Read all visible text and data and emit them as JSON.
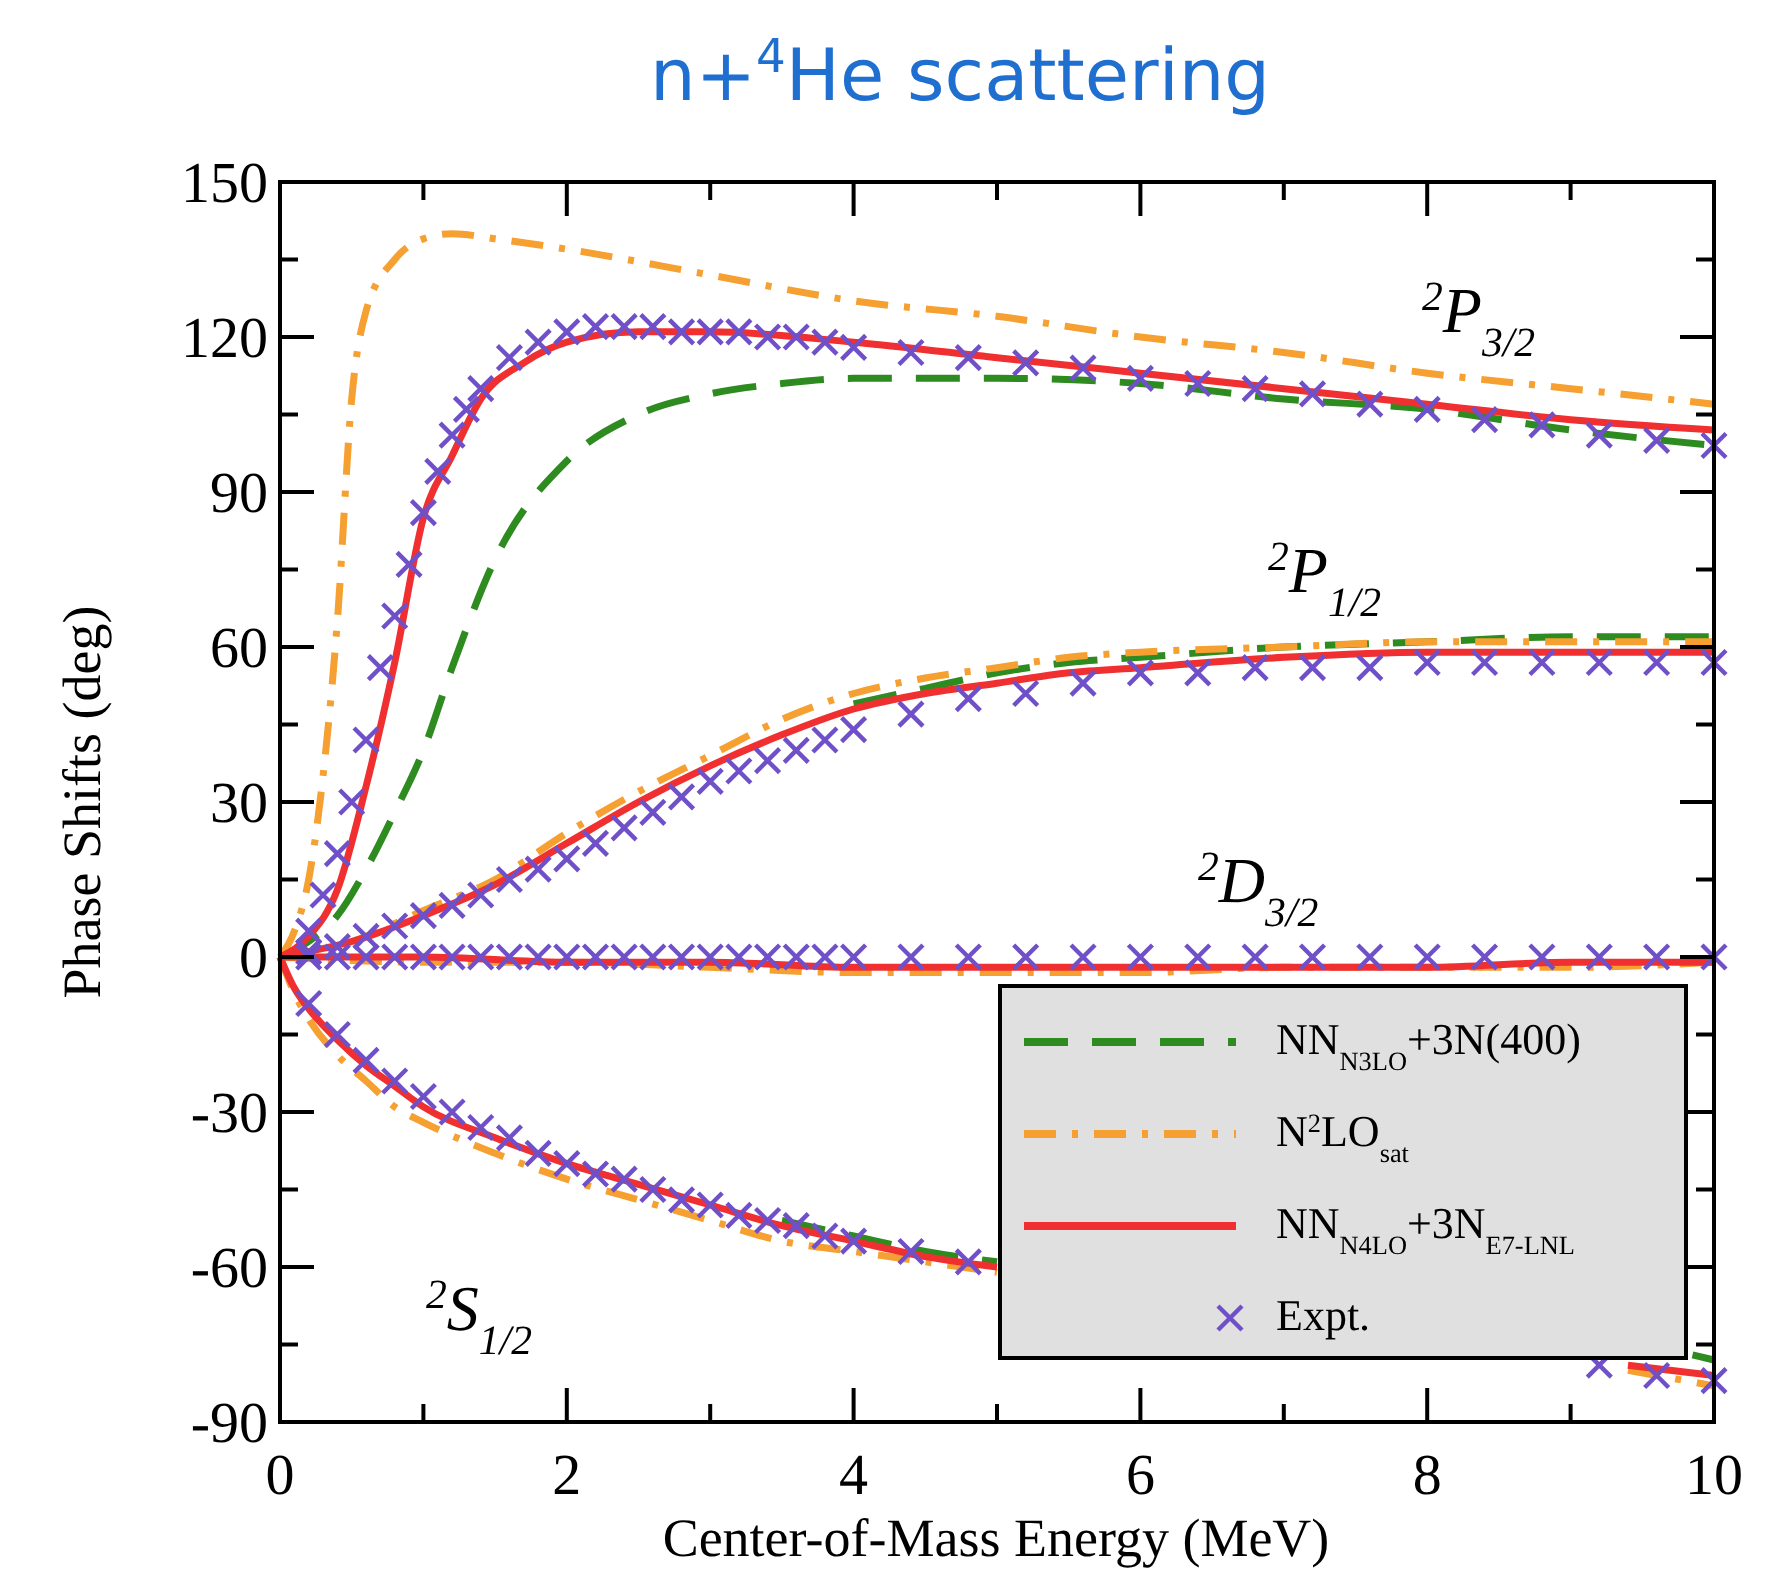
{
  "chart_data": {
    "type": "line",
    "title": "n+$^{4}$He scattering",
    "xlabel": "Center-of-Mass Energy (MeV)",
    "ylabel": "Phase Shifts (deg)",
    "xlim": [
      0,
      10
    ],
    "ylim": [
      -90,
      150
    ],
    "xticks": [
      0,
      {
        "value": 1,
        "label": null
      },
      2,
      {
        "value": 3,
        "label": null
      },
      4,
      {
        "value": 5,
        "label": null
      },
      6,
      {
        "value": 7,
        "label": null
      },
      8,
      {
        "value": 9,
        "label": null
      },
      10
    ],
    "yticks": [
      -90,
      {
        "value": -75,
        "label": null
      },
      -60,
      {
        "value": -45,
        "label": null
      },
      -30,
      {
        "value": -15,
        "label": null
      },
      0,
      {
        "value": 15,
        "label": null
      },
      30,
      {
        "value": 45,
        "label": null
      },
      60,
      {
        "value": 75,
        "label": null
      },
      90,
      {
        "value": 105,
        "label": null
      },
      120,
      {
        "value": 135,
        "label": null
      },
      150
    ],
    "grid": false,
    "legend": "bottom right",
    "annotations": [
      "$^{2}$P$_{3/2}$",
      "$^{2}$P$_{1/2}$",
      "$^{2}$D$_{3/2}$",
      "$^{2}$S$_{1/2}$"
    ],
    "series": [
      {
        "name": "NN$_{N3LO}$+3N(400)",
        "color": "#2e8b20",
        "line_style": "dashed",
        "x": [
          0,
          0.2,
          0.4,
          0.6,
          0.8,
          1.0,
          1.2,
          1.5,
          2,
          2.5,
          3,
          3.5,
          4,
          5,
          6,
          7,
          8,
          9,
          10
        ],
        "values": [
          0,
          3,
          8,
          17,
          28,
          40,
          56,
          77,
          96,
          105,
          109,
          111,
          112,
          112,
          111,
          108,
          106,
          102,
          99
        ]
      },
      {
        "color": "#2e8b20",
        "line_style": "dashed",
        "x": [
          4,
          4.5,
          5,
          5.5,
          6,
          7,
          8,
          9,
          10
        ],
        "values": [
          49,
          52,
          55,
          57,
          58,
          60,
          61,
          62,
          62
        ]
      },
      {
        "color": "#2e8b20",
        "line_style": "dashed",
        "x": [
          3.5,
          4,
          4.5,
          5,
          6,
          7,
          8,
          9.85,
          10
        ],
        "values": [
          -51,
          -54,
          -57,
          -59,
          null,
          null,
          null,
          -77,
          -78
        ]
      },
      {
        "name": "N$^{2}$LO$_{sat}$",
        "color": "#f5a030",
        "line_style": "dotted",
        "x": [
          0,
          0.1,
          0.2,
          0.3,
          0.4,
          0.5,
          0.6,
          0.8,
          1.0,
          1.2,
          1.5,
          2,
          3,
          4,
          5,
          6,
          7,
          8,
          9,
          10
        ],
        "values": [
          0,
          5,
          15,
          35,
          65,
          108,
          125,
          135,
          139,
          140,
          139,
          137,
          132,
          127,
          124,
          120,
          117,
          113,
          110,
          107
        ]
      },
      {
        "color": "#f5a030",
        "line_style": "dotted",
        "x": [
          0,
          0.5,
          1,
          1.5,
          2,
          2.5,
          3,
          3.5,
          4,
          4.5,
          5,
          5.5,
          6,
          7,
          8,
          9,
          10
        ],
        "values": [
          0,
          3,
          9,
          15,
          24,
          32,
          39,
          46,
          51,
          54,
          56,
          58,
          59,
          60,
          61,
          61,
          61
        ]
      },
      {
        "color": "#f5a030",
        "line_style": "dotted",
        "x": [
          0,
          1,
          2,
          3,
          4,
          5,
          6,
          7,
          8,
          9,
          10
        ],
        "values": [
          0,
          -1,
          -1,
          -2,
          -3,
          -3,
          -3,
          -2,
          -2,
          -2,
          -1
        ]
      },
      {
        "color": "#f5a030",
        "line_style": "dotted",
        "x": [
          0,
          0.1,
          0.2,
          0.4,
          0.6,
          0.8,
          1,
          1.5,
          2,
          2.5,
          3,
          3.5,
          4,
          4.5,
          5,
          6,
          7,
          8,
          9.4,
          10
        ],
        "values": [
          0,
          -7,
          -12,
          -19,
          -24,
          -29,
          -32,
          -38,
          -43,
          -47,
          -51,
          -55,
          -57,
          -59,
          -61,
          null,
          null,
          null,
          -80,
          -83
        ]
      },
      {
        "name": "NN$_{N4LO}$+3N$_{E7-LNL}$",
        "color": "#f03030",
        "line_style": "solid",
        "x": [
          0,
          0.2,
          0.4,
          0.6,
          0.8,
          1.0,
          1.2,
          1.4,
          1.7,
          2,
          2.5,
          3,
          4,
          5,
          6,
          7,
          8,
          9,
          10
        ],
        "values": [
          0,
          4,
          13,
          33,
          57,
          85,
          97,
          108,
          115,
          119,
          121,
          121,
          119,
          116,
          113,
          110,
          107,
          104,
          102
        ]
      },
      {
        "color": "#f03030",
        "line_style": "solid",
        "x": [
          0,
          0.5,
          1,
          1.5,
          2,
          2.5,
          3,
          3.5,
          4,
          4.5,
          5,
          5.5,
          6,
          7,
          8,
          9,
          10
        ],
        "values": [
          0,
          3,
          8,
          14,
          22,
          30,
          37,
          43,
          48,
          51,
          53,
          55,
          56,
          58,
          59,
          59,
          59
        ]
      },
      {
        "color": "#f03030",
        "line_style": "solid",
        "x": [
          0,
          1,
          2,
          3,
          4,
          5,
          6,
          7,
          8,
          9,
          10
        ],
        "values": [
          0,
          0,
          -1,
          -1,
          -2,
          -2,
          -2,
          -2,
          -2,
          -1,
          -1
        ]
      },
      {
        "color": "#f03030",
        "line_style": "solid",
        "x": [
          0,
          0.1,
          0.2,
          0.4,
          0.6,
          0.8,
          1,
          1.5,
          2,
          2.5,
          3,
          3.5,
          4,
          4.5,
          5,
          6,
          7,
          8,
          9.4,
          10
        ],
        "values": [
          0,
          -6,
          -10,
          -16,
          -21,
          -25,
          -29,
          -35,
          -40,
          -44,
          -48,
          -52,
          -55,
          -58,
          -60,
          null,
          null,
          null,
          -79,
          -81
        ]
      },
      {
        "name": "Expt.",
        "type": "scatter",
        "color": "#7050c8",
        "marker": "cross",
        "x": [
          0.2,
          0.3,
          0.4,
          0.5,
          0.6,
          0.7,
          0.8,
          0.9,
          1.0,
          1.1,
          1.2,
          1.3,
          1.4,
          1.6,
          1.8,
          2.0,
          2.2,
          2.4,
          2.6,
          2.8,
          3.0,
          3.2,
          3.4,
          3.6,
          3.8,
          4.0,
          4.4,
          4.8,
          5.2,
          5.6,
          6.0,
          6.4,
          6.8,
          7.2,
          7.6,
          8.0,
          8.4,
          8.8,
          9.2,
          9.6,
          10
        ],
        "values": [
          5,
          12,
          20,
          30,
          42,
          56,
          66,
          76,
          86,
          94,
          101,
          106,
          110,
          116,
          119,
          121,
          122,
          122,
          122,
          121,
          121,
          121,
          120,
          120,
          119,
          118,
          117,
          116,
          115,
          114,
          112,
          111,
          110,
          109,
          107,
          106,
          104,
          103,
          101,
          100,
          99
        ]
      },
      {
        "type": "scatter",
        "color": "#7050c8",
        "marker": "cross",
        "x": [
          0.2,
          0.4,
          0.6,
          0.8,
          1.0,
          1.2,
          1.4,
          1.6,
          1.8,
          2.0,
          2.2,
          2.4,
          2.6,
          2.8,
          3.0,
          3.2,
          3.4,
          3.6,
          3.8,
          4.0,
          4.4,
          4.8,
          5.2,
          5.6,
          6.0,
          6.4,
          6.8,
          7.2,
          7.6,
          8.0,
          8.4,
          8.8,
          9.2,
          9.6,
          10
        ],
        "values": [
          1,
          2,
          4,
          6,
          8,
          10,
          12,
          15,
          17,
          19,
          22,
          25,
          28,
          31,
          34,
          36,
          38,
          40,
          42,
          44,
          47,
          50,
          51,
          53,
          55,
          55,
          56,
          56,
          56,
          57,
          57,
          57,
          57,
          57,
          57
        ]
      },
      {
        "type": "scatter",
        "color": "#7050c8",
        "marker": "cross",
        "x": [
          0.2,
          0.4,
          0.6,
          0.8,
          1.0,
          1.2,
          1.4,
          1.6,
          1.8,
          2.0,
          2.2,
          2.4,
          2.6,
          2.8,
          3.0,
          3.2,
          3.4,
          3.6,
          3.8,
          4.0,
          4.4,
          4.8,
          5.2,
          5.6,
          6.0,
          6.4,
          6.8,
          7.2,
          7.6,
          8.0,
          8.4,
          8.8,
          9.2,
          9.6,
          10
        ],
        "values": [
          0,
          0,
          0,
          0,
          0,
          0,
          0,
          0,
          0,
          0,
          0,
          0,
          0,
          0,
          0,
          0,
          0,
          0,
          0,
          0,
          0,
          0,
          0,
          0,
          0,
          0,
          0,
          0,
          0,
          0,
          0,
          0,
          0,
          0,
          0
        ]
      },
      {
        "type": "scatter",
        "color": "#7050c8",
        "marker": "cross",
        "x": [
          0.2,
          0.4,
          0.6,
          0.8,
          1.0,
          1.2,
          1.4,
          1.6,
          1.8,
          2.0,
          2.2,
          2.4,
          2.6,
          2.8,
          3.0,
          3.2,
          3.4,
          3.6,
          3.8,
          4.0,
          4.4,
          4.8,
          9.2,
          9.6,
          10
        ],
        "values": [
          -9,
          -15,
          -20,
          -24,
          -27,
          -30,
          -33,
          -35,
          -38,
          -40,
          -42,
          -43,
          -45,
          -47,
          -48,
          -50,
          -51,
          -52,
          -54,
          -55,
          -57,
          -59,
          -79,
          -81,
          -82
        ]
      }
    ]
  }
}
